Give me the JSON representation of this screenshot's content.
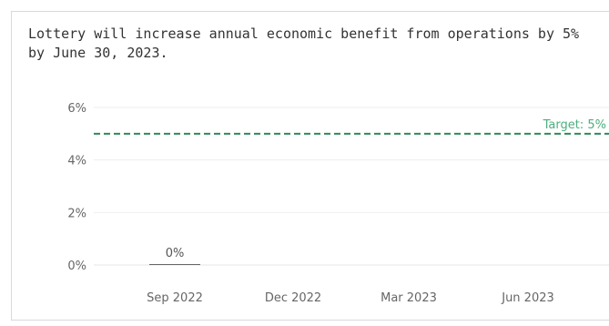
{
  "title": "Lottery will increase annual economic benefit from operations by 5% by June 30, 2023.",
  "colors": {
    "gridline": "#eeeeee",
    "axis": "#e6e6e6",
    "target": "#2e8b57",
    "bar": "#666666",
    "text": "#666666"
  },
  "chart_data": {
    "type": "bar",
    "title": "Lottery will increase annual economic benefit from operations by 5% by June 30, 2023.",
    "xlabel": "",
    "ylabel": "",
    "ylim": [
      0,
      6
    ],
    "grid": true,
    "y_ticks": [
      "6%",
      "4%",
      "2%",
      "0%"
    ],
    "y_tick_values": [
      6,
      4,
      2,
      0
    ],
    "x_ticks": [
      "Sep 2022",
      "Dec 2022",
      "Mar 2023",
      "Jun 2023"
    ],
    "categories": [
      "Sep 2022"
    ],
    "values": [
      0
    ],
    "data_labels": [
      "0%"
    ],
    "target": {
      "value": 5,
      "label": "Target: 5%"
    }
  }
}
